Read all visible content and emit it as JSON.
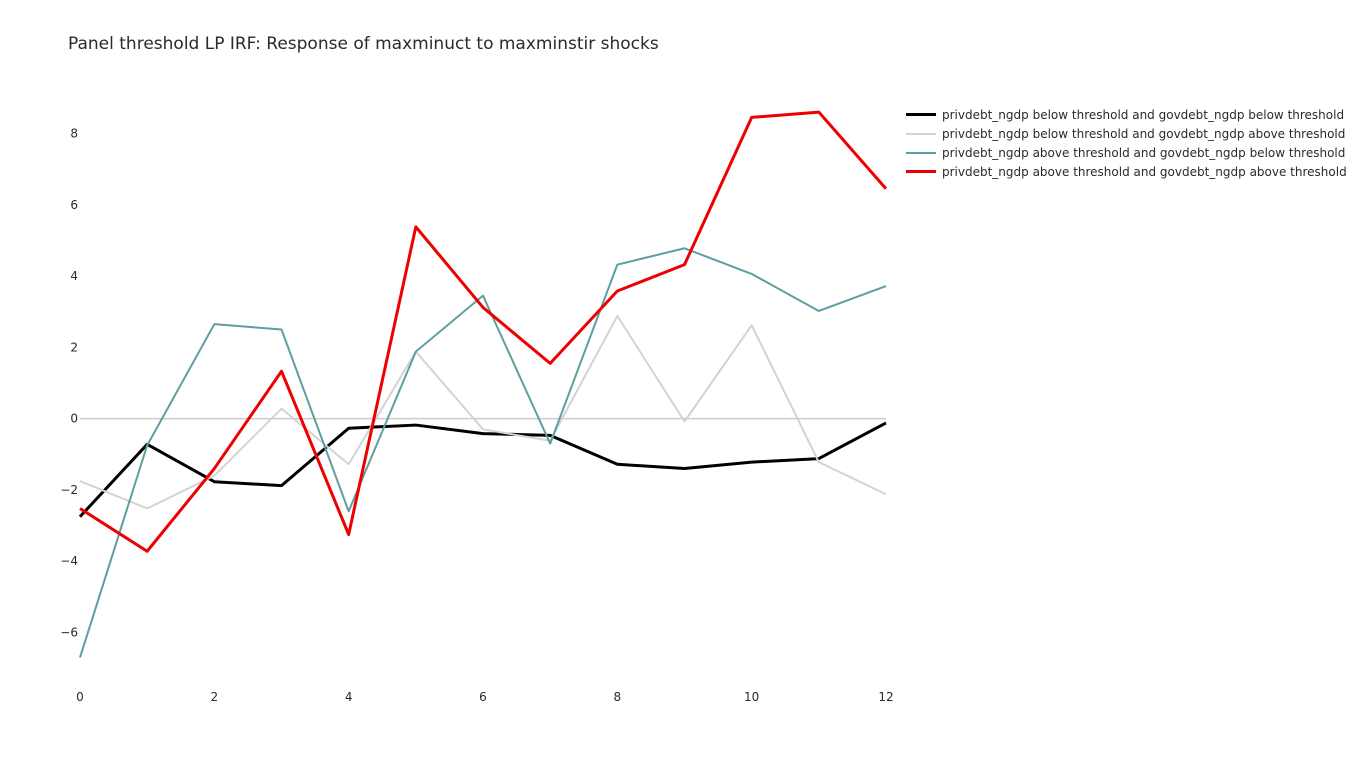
{
  "chart_data": {
    "type": "line",
    "title": "Panel threshold LP IRF: Response of maxminuct to maxminstir shocks",
    "xlabel": "",
    "ylabel": "",
    "x": [
      0,
      1,
      2,
      3,
      4,
      5,
      6,
      7,
      8,
      9,
      10,
      11,
      12
    ],
    "xlim": [
      0,
      12
    ],
    "ylim": [
      -7.5,
      9.5
    ],
    "x_ticks": [
      0,
      2,
      4,
      6,
      8,
      10,
      12
    ],
    "y_ticks": [
      -6,
      -4,
      -2,
      0,
      2,
      4,
      6,
      8
    ],
    "y_tick_labels": [
      "−6",
      "−4",
      "−2",
      "0",
      "2",
      "4",
      "6",
      "8"
    ],
    "zero_line": true,
    "grid": false,
    "legend_position": "top-right",
    "series": [
      {
        "name": "privdebt_ngdp below threshold and govdebt_ngdp below threshold",
        "color": "#000000",
        "width": 3,
        "values": [
          -2.75,
          -0.72,
          -1.77,
          -1.88,
          -0.27,
          -0.18,
          -0.42,
          -0.47,
          -1.28,
          -1.4,
          -1.22,
          -1.12,
          -0.12
        ]
      },
      {
        "name": "privdebt_ngdp below threshold and govdebt_ngdp above threshold",
        "color": "#d3d3d3",
        "width": 2,
        "values": [
          -1.75,
          -2.52,
          -1.6,
          0.28,
          -1.28,
          1.88,
          -0.3,
          -0.62,
          2.88,
          -0.08,
          2.62,
          -1.22,
          -2.12
        ]
      },
      {
        "name": "privdebt_ngdp above threshold and govdebt_ngdp below threshold",
        "color": "#5f9ea0",
        "width": 2,
        "values": [
          -6.7,
          -0.75,
          2.65,
          2.5,
          -2.6,
          1.88,
          3.45,
          -0.7,
          4.32,
          4.78,
          4.06,
          3.02,
          3.72
        ]
      },
      {
        "name": "privdebt_ngdp above threshold and govdebt_ngdp above threshold",
        "color": "#ee0000",
        "width": 3,
        "values": [
          -2.52,
          -3.72,
          -1.4,
          1.33,
          -3.25,
          5.38,
          3.12,
          1.55,
          3.58,
          4.32,
          8.45,
          8.6,
          6.45
        ]
      }
    ]
  }
}
